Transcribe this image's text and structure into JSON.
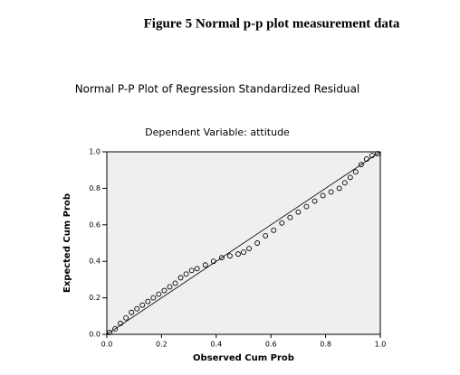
{
  "chart_data": {
    "type": "scatter",
    "figure_caption": "Figure 5 Normal p-p plot measurement data",
    "title": "Normal P-P Plot of Regression Standardized Residual",
    "subtitle": "Dependent Variable: attitude",
    "xlabel": "Observed Cum Prob",
    "ylabel": "Expected Cum Prob",
    "x": [
      0.01,
      0.03,
      0.05,
      0.07,
      0.09,
      0.11,
      0.13,
      0.15,
      0.17,
      0.19,
      0.21,
      0.23,
      0.25,
      0.27,
      0.29,
      0.31,
      0.33,
      0.36,
      0.39,
      0.42,
      0.45,
      0.48,
      0.5,
      0.52,
      0.55,
      0.58,
      0.61,
      0.64,
      0.67,
      0.7,
      0.73,
      0.76,
      0.79,
      0.82,
      0.85,
      0.87,
      0.89,
      0.91,
      0.93,
      0.95,
      0.97,
      0.99
    ],
    "y": [
      0.01,
      0.03,
      0.06,
      0.09,
      0.12,
      0.14,
      0.16,
      0.18,
      0.2,
      0.22,
      0.24,
      0.26,
      0.28,
      0.31,
      0.33,
      0.35,
      0.36,
      0.38,
      0.4,
      0.42,
      0.43,
      0.44,
      0.45,
      0.47,
      0.5,
      0.54,
      0.57,
      0.61,
      0.64,
      0.67,
      0.7,
      0.73,
      0.76,
      0.78,
      0.8,
      0.83,
      0.86,
      0.89,
      0.93,
      0.96,
      0.98,
      0.99
    ],
    "color": "#000000",
    "xlim": [
      0,
      1
    ],
    "ylim": [
      0,
      1
    ],
    "xticks": [
      {
        "value": 0,
        "label": "0.0"
      },
      {
        "value": 0.2,
        "label": "0.2"
      },
      {
        "value": 0.4,
        "label": "0.4"
      },
      {
        "value": 0.6,
        "label": "0.6"
      },
      {
        "value": 0.8,
        "label": "0.8"
      },
      {
        "value": 1,
        "label": "1.0"
      }
    ],
    "yticks": [
      {
        "value": 0,
        "label": "0.0"
      },
      {
        "value": 0.2,
        "label": "0.2"
      },
      {
        "value": 0.4,
        "label": "0.4"
      },
      {
        "value": 0.6,
        "label": "0.6"
      },
      {
        "value": 0.8,
        "label": "0.8"
      },
      {
        "value": 1,
        "label": "1.0"
      }
    ]
  }
}
